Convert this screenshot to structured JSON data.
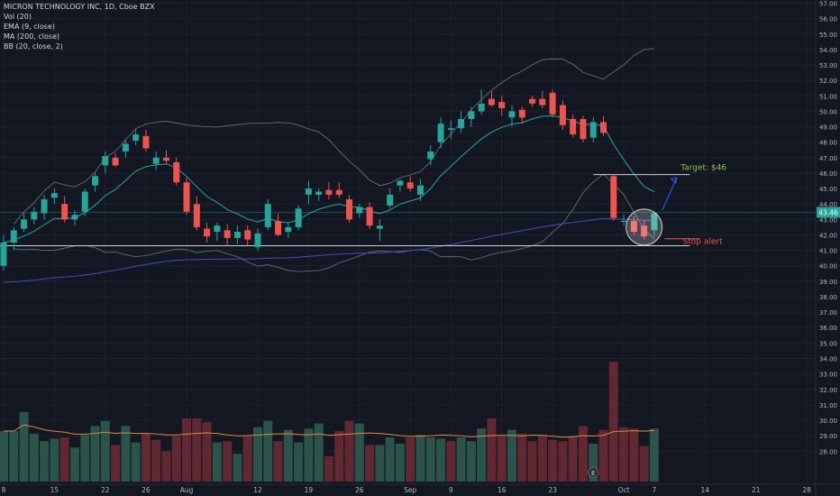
{
  "legend": {
    "title": "MICRON TECHNOLOGY INC, 1D, Cboe BZX",
    "vol": "Vol (20)",
    "ema": "EMA (9, close)",
    "ma": "MA (200, close)",
    "bb": "BB (20, close, 2)"
  },
  "colors": {
    "background": "#131722",
    "up": "#26a69a",
    "down": "#ef5350",
    "grid": "#1e222d",
    "bb": "#8a8d95",
    "ema": "#26a69a",
    "ma": "#3f51b5",
    "vol_up": "#2e5a4f",
    "vol_down": "#6b2a34",
    "vol_ma": "#e08a3c",
    "price_badge": "#26a69a",
    "target": "#8bc34a",
    "stop": "#ef5350",
    "arrow": "#2962ff"
  },
  "chart_data": {
    "type": "candlestick",
    "y_axis": {
      "min": 27,
      "max": 57,
      "step": 1,
      "tick_labels": [
        "57.00",
        "56.00",
        "55.00",
        "54.00",
        "53.00",
        "52.00",
        "51.00",
        "50.00",
        "49.00",
        "48.00",
        "47.00",
        "46.00",
        "45.00",
        "44.00",
        "43.00",
        "42.00",
        "41.00",
        "40.00",
        "39.00",
        "38.00",
        "37.00",
        "36.00",
        "35.00",
        "34.00",
        "33.00",
        "32.00",
        "31.00",
        "30.00",
        "29.00",
        "28.00"
      ]
    },
    "x_axis": {
      "bar_min": 0,
      "bar_max": 78,
      "ticks": [
        {
          "label": "8",
          "bar": 0
        },
        {
          "label": "15",
          "bar": 5
        },
        {
          "label": "22",
          "bar": 10
        },
        {
          "label": "26",
          "bar": 14
        },
        {
          "label": "Aug",
          "bar": 18
        },
        {
          "label": "12",
          "bar": 25
        },
        {
          "label": "19",
          "bar": 30
        },
        {
          "label": "26",
          "bar": 35
        },
        {
          "label": "Sep",
          "bar": 40
        },
        {
          "label": "9",
          "bar": 44
        },
        {
          "label": "16",
          "bar": 49
        },
        {
          "label": "23",
          "bar": 54
        },
        {
          "label": "Oct",
          "bar": 61
        },
        {
          "label": "7",
          "bar": 64
        },
        {
          "label": "14",
          "bar": 69
        },
        {
          "label": "21",
          "bar": 74
        },
        {
          "label": "28",
          "bar": 79
        }
      ]
    },
    "candles": [
      {
        "o": 40.0,
        "h": 42.0,
        "l": 39.7,
        "c": 41.5
      },
      {
        "o": 41.5,
        "h": 42.5,
        "l": 41.0,
        "c": 42.3
      },
      {
        "o": 42.4,
        "h": 43.4,
        "l": 42.2,
        "c": 43.0
      },
      {
        "o": 43.0,
        "h": 43.8,
        "l": 42.7,
        "c": 43.5
      },
      {
        "o": 43.4,
        "h": 44.6,
        "l": 43.0,
        "c": 44.3
      },
      {
        "o": 44.4,
        "h": 45.0,
        "l": 44.0,
        "c": 44.7
      },
      {
        "o": 44.0,
        "h": 44.5,
        "l": 42.8,
        "c": 43.0
      },
      {
        "o": 43.0,
        "h": 43.6,
        "l": 42.6,
        "c": 43.3
      },
      {
        "o": 43.5,
        "h": 45.0,
        "l": 43.2,
        "c": 44.8
      },
      {
        "o": 45.2,
        "h": 46.0,
        "l": 44.8,
        "c": 45.8
      },
      {
        "o": 46.5,
        "h": 47.4,
        "l": 46.0,
        "c": 47.1
      },
      {
        "o": 47.0,
        "h": 47.3,
        "l": 46.4,
        "c": 46.5
      },
      {
        "o": 47.4,
        "h": 48.2,
        "l": 47.0,
        "c": 47.9
      },
      {
        "o": 48.1,
        "h": 48.8,
        "l": 47.8,
        "c": 48.5
      },
      {
        "o": 48.4,
        "h": 48.8,
        "l": 47.4,
        "c": 47.6
      },
      {
        "o": 46.6,
        "h": 47.4,
        "l": 46.2,
        "c": 47.0
      },
      {
        "o": 47.0,
        "h": 47.5,
        "l": 46.6,
        "c": 46.8
      },
      {
        "o": 46.7,
        "h": 47.0,
        "l": 45.2,
        "c": 45.4
      },
      {
        "o": 45.4,
        "h": 45.7,
        "l": 43.3,
        "c": 43.5
      },
      {
        "o": 44.0,
        "h": 44.5,
        "l": 42.3,
        "c": 42.5
      },
      {
        "o": 42.4,
        "h": 42.8,
        "l": 41.5,
        "c": 41.9
      },
      {
        "o": 42.2,
        "h": 42.8,
        "l": 41.6,
        "c": 42.6
      },
      {
        "o": 42.3,
        "h": 42.7,
        "l": 41.3,
        "c": 41.8
      },
      {
        "o": 41.8,
        "h": 42.6,
        "l": 41.4,
        "c": 42.2
      },
      {
        "o": 42.3,
        "h": 42.6,
        "l": 41.3,
        "c": 41.7
      },
      {
        "o": 41.2,
        "h": 42.4,
        "l": 41.0,
        "c": 42.1
      },
      {
        "o": 42.5,
        "h": 44.3,
        "l": 42.3,
        "c": 44.0
      },
      {
        "o": 42.9,
        "h": 43.4,
        "l": 41.9,
        "c": 42.0
      },
      {
        "o": 42.2,
        "h": 42.8,
        "l": 41.8,
        "c": 42.5
      },
      {
        "o": 42.5,
        "h": 43.9,
        "l": 42.3,
        "c": 43.7
      },
      {
        "o": 44.6,
        "h": 45.5,
        "l": 44.0,
        "c": 45.0
      },
      {
        "o": 44.6,
        "h": 45.0,
        "l": 44.2,
        "c": 44.8
      },
      {
        "o": 44.9,
        "h": 45.4,
        "l": 44.3,
        "c": 44.6
      },
      {
        "o": 44.9,
        "h": 45.4,
        "l": 44.4,
        "c": 44.6
      },
      {
        "o": 44.3,
        "h": 44.6,
        "l": 42.8,
        "c": 43.0
      },
      {
        "o": 43.4,
        "h": 44.0,
        "l": 43.1,
        "c": 43.8
      },
      {
        "o": 43.8,
        "h": 44.1,
        "l": 42.4,
        "c": 42.6
      },
      {
        "o": 42.4,
        "h": 43.0,
        "l": 41.6,
        "c": 42.6
      },
      {
        "o": 43.9,
        "h": 45.0,
        "l": 43.7,
        "c": 44.6
      },
      {
        "o": 45.2,
        "h": 45.6,
        "l": 44.8,
        "c": 45.5
      },
      {
        "o": 45.4,
        "h": 45.8,
        "l": 44.8,
        "c": 45.0
      },
      {
        "o": 44.6,
        "h": 45.6,
        "l": 44.2,
        "c": 45.2
      },
      {
        "o": 46.9,
        "h": 47.8,
        "l": 46.5,
        "c": 47.4
      },
      {
        "o": 48.0,
        "h": 49.6,
        "l": 47.6,
        "c": 49.2
      },
      {
        "o": 48.8,
        "h": 49.4,
        "l": 48.2,
        "c": 48.9
      },
      {
        "o": 48.9,
        "h": 50.0,
        "l": 48.6,
        "c": 49.5
      },
      {
        "o": 49.5,
        "h": 50.3,
        "l": 49.0,
        "c": 50.0
      },
      {
        "o": 50.0,
        "h": 51.4,
        "l": 49.8,
        "c": 50.5
      },
      {
        "o": 50.8,
        "h": 51.3,
        "l": 50.3,
        "c": 50.4
      },
      {
        "o": 50.6,
        "h": 51.0,
        "l": 49.7,
        "c": 50.2
      },
      {
        "o": 49.6,
        "h": 50.4,
        "l": 49.0,
        "c": 50.0
      },
      {
        "o": 50.1,
        "h": 50.3,
        "l": 49.2,
        "c": 49.6
      },
      {
        "o": 50.8,
        "h": 51.0,
        "l": 50.3,
        "c": 50.5
      },
      {
        "o": 50.8,
        "h": 51.3,
        "l": 50.2,
        "c": 50.4
      },
      {
        "o": 51.2,
        "h": 51.4,
        "l": 49.6,
        "c": 49.8
      },
      {
        "o": 50.4,
        "h": 50.7,
        "l": 48.8,
        "c": 49.1
      },
      {
        "o": 49.5,
        "h": 49.8,
        "l": 48.3,
        "c": 48.5
      },
      {
        "o": 49.5,
        "h": 49.7,
        "l": 48.0,
        "c": 48.2
      },
      {
        "o": 48.3,
        "h": 49.6,
        "l": 48.0,
        "c": 49.3
      },
      {
        "o": 49.3,
        "h": 49.7,
        "l": 48.4,
        "c": 48.6
      },
      {
        "o": 45.8,
        "h": 45.9,
        "l": 42.9,
        "c": 43.1
      },
      {
        "o": 42.9,
        "h": 43.3,
        "l": 42.6,
        "c": 42.9
      },
      {
        "o": 42.9,
        "h": 43.2,
        "l": 42.0,
        "c": 42.2
      },
      {
        "o": 42.6,
        "h": 42.9,
        "l": 41.7,
        "c": 41.9
      },
      {
        "o": 42.3,
        "h": 43.5,
        "l": 41.9,
        "c": 43.4
      }
    ],
    "volume": {
      "ylim": [
        0,
        100
      ],
      "values": [
        40,
        40,
        55,
        38,
        32,
        34,
        35,
        27,
        37,
        44,
        48,
        29,
        44,
        31,
        38,
        33,
        24,
        36,
        50,
        50,
        47,
        31,
        32,
        22,
        36,
        43,
        48,
        32,
        41,
        31,
        42,
        46,
        20,
        40,
        48,
        46,
        29,
        29,
        35,
        30,
        35,
        37,
        35,
        34,
        32,
        35,
        32,
        42,
        50,
        36,
        41,
        38,
        32,
        37,
        33,
        32,
        36,
        44,
        30,
        41,
        95,
        43,
        42,
        28,
        42
      ],
      "directions": [
        "u",
        "u",
        "u",
        "u",
        "u",
        "u",
        "d",
        "u",
        "u",
        "u",
        "u",
        "d",
        "u",
        "u",
        "d",
        "d",
        "d",
        "d",
        "d",
        "d",
        "d",
        "u",
        "d",
        "u",
        "d",
        "u",
        "u",
        "d",
        "u",
        "u",
        "u",
        "u",
        "d",
        "d",
        "d",
        "u",
        "d",
        "u",
        "u",
        "u",
        "d",
        "u",
        "u",
        "u",
        "d",
        "u",
        "u",
        "u",
        "d",
        "d",
        "u",
        "d",
        "d",
        "d",
        "d",
        "d",
        "d",
        "d",
        "u",
        "d",
        "d",
        "d",
        "d",
        "d",
        "u"
      ]
    },
    "current_price": {
      "value": 43.46,
      "label": "43.46"
    },
    "annotations": {
      "target_label": "Target: $46",
      "target_level": 45.9,
      "stop_label": "Stop alert",
      "stop_level": 41.75,
      "support_level": 41.3,
      "event_marker": "E"
    }
  }
}
